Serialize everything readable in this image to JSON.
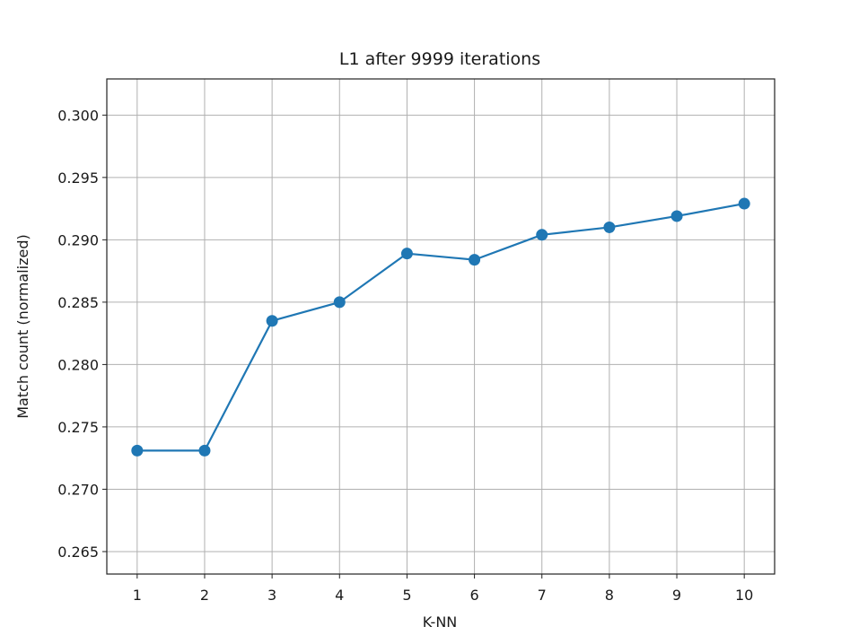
{
  "chart_data": {
    "type": "line",
    "title": "L1 after 9999 iterations",
    "xlabel": "K-NN",
    "ylabel": "Match count (normalized)",
    "x": [
      1,
      2,
      3,
      4,
      5,
      6,
      7,
      8,
      9,
      10
    ],
    "xticks": [
      "1",
      "2",
      "3",
      "4",
      "5",
      "6",
      "7",
      "8",
      "9",
      "10"
    ],
    "yticks": [
      "0.265",
      "0.270",
      "0.275",
      "0.280",
      "0.285",
      "0.290",
      "0.295",
      "0.300"
    ],
    "ytick_values": [
      0.265,
      0.27,
      0.275,
      0.28,
      0.285,
      0.29,
      0.295,
      0.3
    ],
    "xlim": [
      0.55,
      10.45
    ],
    "ylim": [
      0.2632,
      0.3029
    ],
    "series": [
      {
        "values": [
          0.2731,
          0.2731,
          0.2835,
          0.285,
          0.2889,
          0.2884,
          0.2904,
          0.291,
          0.2919,
          0.2929
        ],
        "color": "#1f77b4",
        "marker": "circle"
      }
    ],
    "grid": true,
    "legend": "none"
  }
}
